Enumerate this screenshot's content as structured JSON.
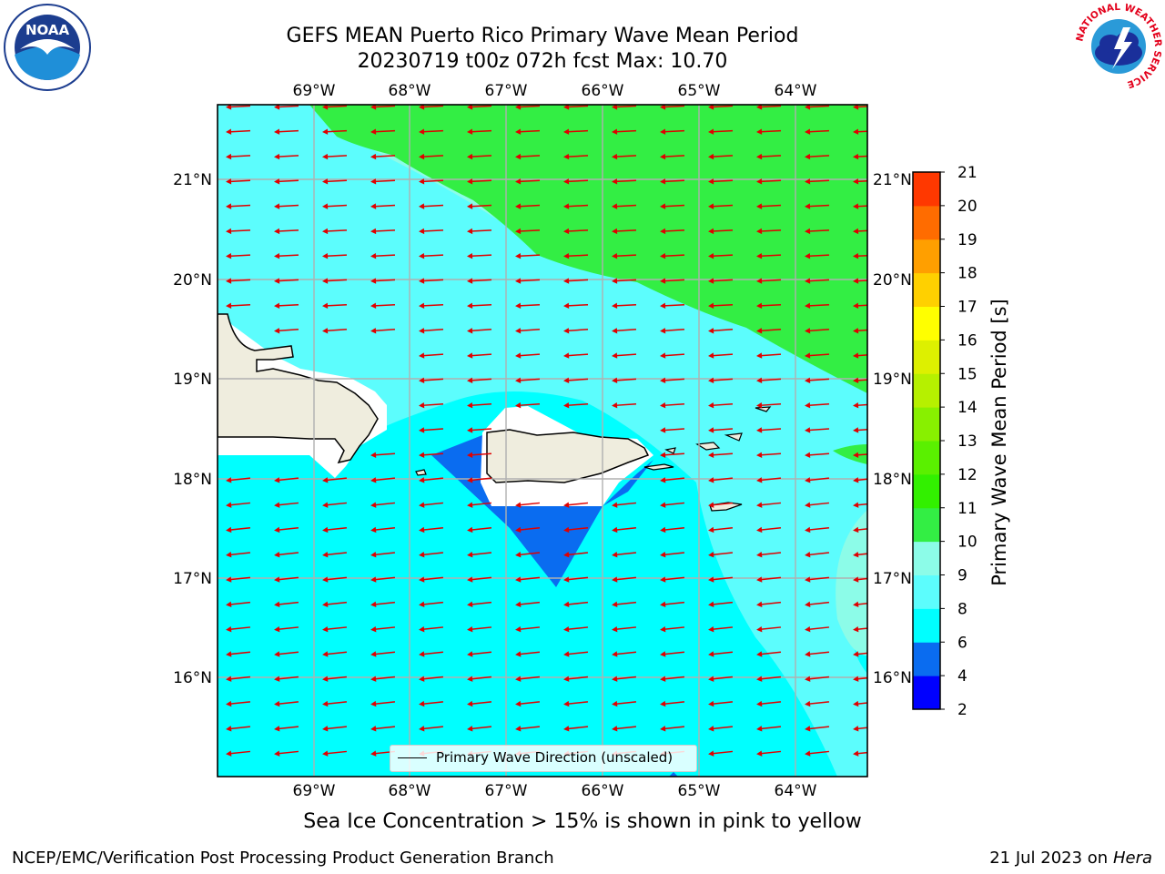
{
  "title": {
    "line1": "GEFS MEAN Puerto Rico Primary Wave Mean Period",
    "line2": "20230719 t00z 072h fcst   Max: 10.70"
  },
  "map": {
    "lon_ticks": [
      "69°W",
      "68°W",
      "67°W",
      "66°W",
      "65°W",
      "64°W"
    ],
    "lat_ticks": [
      "21°N",
      "20°N",
      "19°N",
      "18°N",
      "17°N",
      "16°N"
    ],
    "legend_label": "Primary Wave Direction (unscaled)",
    "arrow_color": "#e00000",
    "regions": [
      "Hispaniola",
      "Puerto Rico",
      "Virgin Islands"
    ]
  },
  "colorbar": {
    "label": "Primary Wave Mean Period [s]",
    "ticks": [
      "2",
      "4",
      "6",
      "8",
      "9",
      "10",
      "11",
      "12",
      "13",
      "14",
      "15",
      "16",
      "17",
      "18",
      "19",
      "20",
      "21"
    ],
    "colors": [
      "#0000ff",
      "#0a6cf0",
      "#00ffff",
      "#5cfdfd",
      "#8cfce8",
      "#33ee44",
      "#32f000",
      "#5af000",
      "#88f000",
      "#b6f000",
      "#ddf000",
      "#ffff00",
      "#ffd000",
      "#ff9f00",
      "#ff6c00",
      "#ff3800",
      "#ff0000"
    ]
  },
  "sea_ice_note": "Sea Ice Concentration > 15% is shown in pink to yellow",
  "footer": {
    "left": "NCEP/EMC/Verification Post Processing Product Generation Branch",
    "right_prefix": "21 Jul 2023 on ",
    "right_host": "Hera"
  },
  "logos": {
    "noaa_text": "NOAA",
    "nws_ring_text": "NATIONAL WEATHER SERVICE"
  }
}
